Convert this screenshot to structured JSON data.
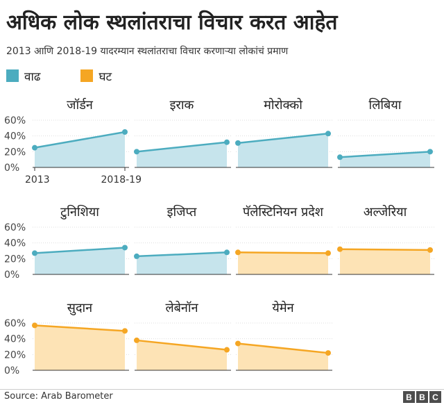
{
  "title": "अधिक लोक स्थलांतराचा विचार करत आहेत",
  "subtitle": "2013 आणि 2018-19 यादरम्यान स्थलांतराचा विचार करणाऱ्या लोकांचं प्रमाण",
  "legend": {
    "increase": {
      "label": "वाढ",
      "color": "#4cacbf"
    },
    "decrease": {
      "label": "घट",
      "color": "#f5a623"
    }
  },
  "source": "Source: Arab Barometer",
  "logo": {
    "letters": [
      "B",
      "B",
      "C"
    ]
  },
  "chart_data": {
    "type": "area",
    "x": [
      "2013",
      "2018-19"
    ],
    "y_ticks": [
      "60%",
      "40%",
      "20%",
      "0%"
    ],
    "ylim": [
      0,
      60
    ],
    "panels": [
      {
        "name": "जॉर्डन",
        "values": [
          25,
          45
        ],
        "trend": "increase"
      },
      {
        "name": "इराक",
        "values": [
          20,
          32
        ],
        "trend": "increase"
      },
      {
        "name": "मोरोक्को",
        "values": [
          31,
          43
        ],
        "trend": "increase"
      },
      {
        "name": "लिबिया",
        "values": [
          13,
          20
        ],
        "trend": "increase"
      },
      {
        "name": "टुनिशिया",
        "values": [
          27,
          34
        ],
        "trend": "increase"
      },
      {
        "name": "इजिप्त",
        "values": [
          23,
          28
        ],
        "trend": "increase"
      },
      {
        "name": "पॅलेस्टिनियन प्रदेश",
        "values": [
          28,
          27
        ],
        "trend": "decrease"
      },
      {
        "name": "अल्जेरिया",
        "values": [
          32,
          31
        ],
        "trend": "decrease"
      },
      {
        "name": "सुदान",
        "values": [
          57,
          50
        ],
        "trend": "decrease"
      },
      {
        "name": "लेबेनॉन",
        "values": [
          38,
          26
        ],
        "trend": "decrease"
      },
      {
        "name": "येमेन",
        "values": [
          34,
          22
        ],
        "trend": "decrease"
      }
    ]
  }
}
